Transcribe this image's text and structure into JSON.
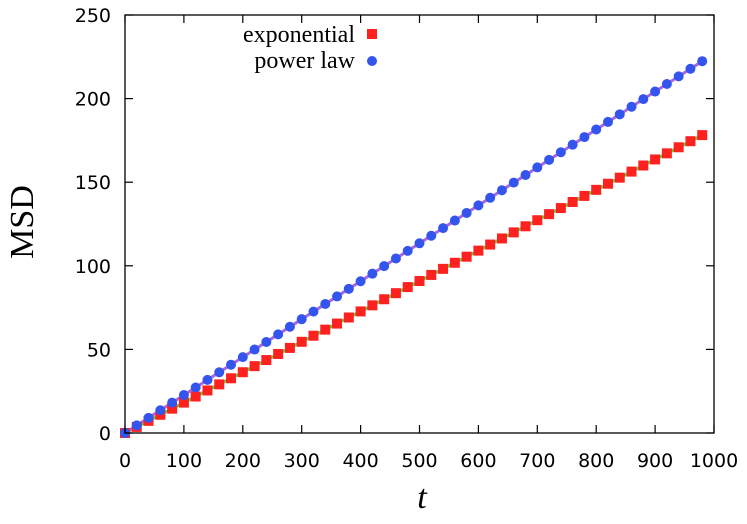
{
  "chart_data": {
    "type": "scatter",
    "title": "",
    "xlabel": "t",
    "ylabel": "MSD",
    "xlim": [
      0,
      1000
    ],
    "ylim": [
      0,
      250
    ],
    "xticks": [
      0,
      100,
      200,
      300,
      400,
      500,
      600,
      700,
      800,
      900,
      1000
    ],
    "yticks": [
      0,
      50,
      100,
      150,
      200,
      250
    ],
    "x_tick_labels": [
      "0",
      "100",
      "200",
      "300",
      "400",
      "500",
      "600",
      "700",
      "800",
      "900",
      "1000"
    ],
    "y_tick_labels": [
      "0",
      "50",
      "100",
      "150",
      "200",
      "250"
    ],
    "grid": false,
    "legend_position": "top-left",
    "series": [
      {
        "name": "exponential",
        "marker": "square",
        "color": "#ff2020",
        "fit_color": "#66cc33",
        "slope": 0.1818
      },
      {
        "name": "power law",
        "marker": "circle",
        "color": "#3355ee",
        "fit_color": "#aa66dd",
        "slope": 0.2269
      }
    ],
    "x": [
      0,
      20,
      40,
      60,
      80,
      100,
      120,
      140,
      160,
      180,
      200,
      220,
      240,
      260,
      280,
      300,
      320,
      340,
      360,
      380,
      400,
      420,
      440,
      460,
      480,
      500,
      520,
      540,
      560,
      580,
      600,
      620,
      640,
      660,
      680,
      700,
      720,
      740,
      760,
      780,
      800,
      820,
      840,
      860,
      880,
      900,
      920,
      940,
      960,
      980
    ]
  },
  "colors": {
    "axis": "#000000",
    "background": "#ffffff"
  }
}
